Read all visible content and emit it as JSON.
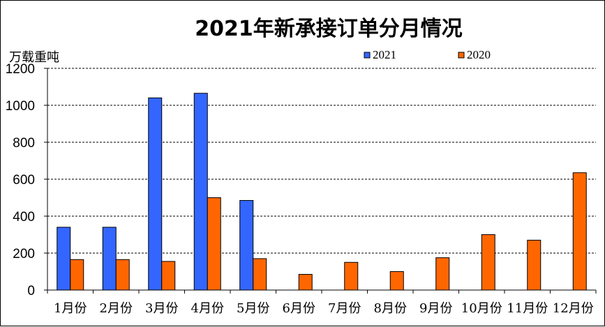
{
  "chart_data": {
    "type": "bar",
    "title": "2021年新承接订单分月情况",
    "ylabel": "万载重吨",
    "xlabel": "",
    "ylim": [
      0,
      1200
    ],
    "yticks": [
      0,
      200,
      400,
      600,
      800,
      1000,
      1200
    ],
    "grid": "horizontal-dashed",
    "legend_position": "top-right",
    "categories": [
      "1月份",
      "2月份",
      "3月份",
      "4月份",
      "5月份",
      "6月份",
      "7月份",
      "8月份",
      "9月份",
      "10月份",
      "11月份",
      "12月份"
    ],
    "series": [
      {
        "name": "2021",
        "color": "#3366ff",
        "values": [
          340,
          340,
          1040,
          1065,
          485,
          null,
          null,
          null,
          null,
          null,
          null,
          null
        ]
      },
      {
        "name": "2020",
        "color": "#ff6600",
        "values": [
          165,
          165,
          155,
          500,
          170,
          85,
          150,
          100,
          175,
          300,
          270,
          635
        ]
      }
    ]
  }
}
